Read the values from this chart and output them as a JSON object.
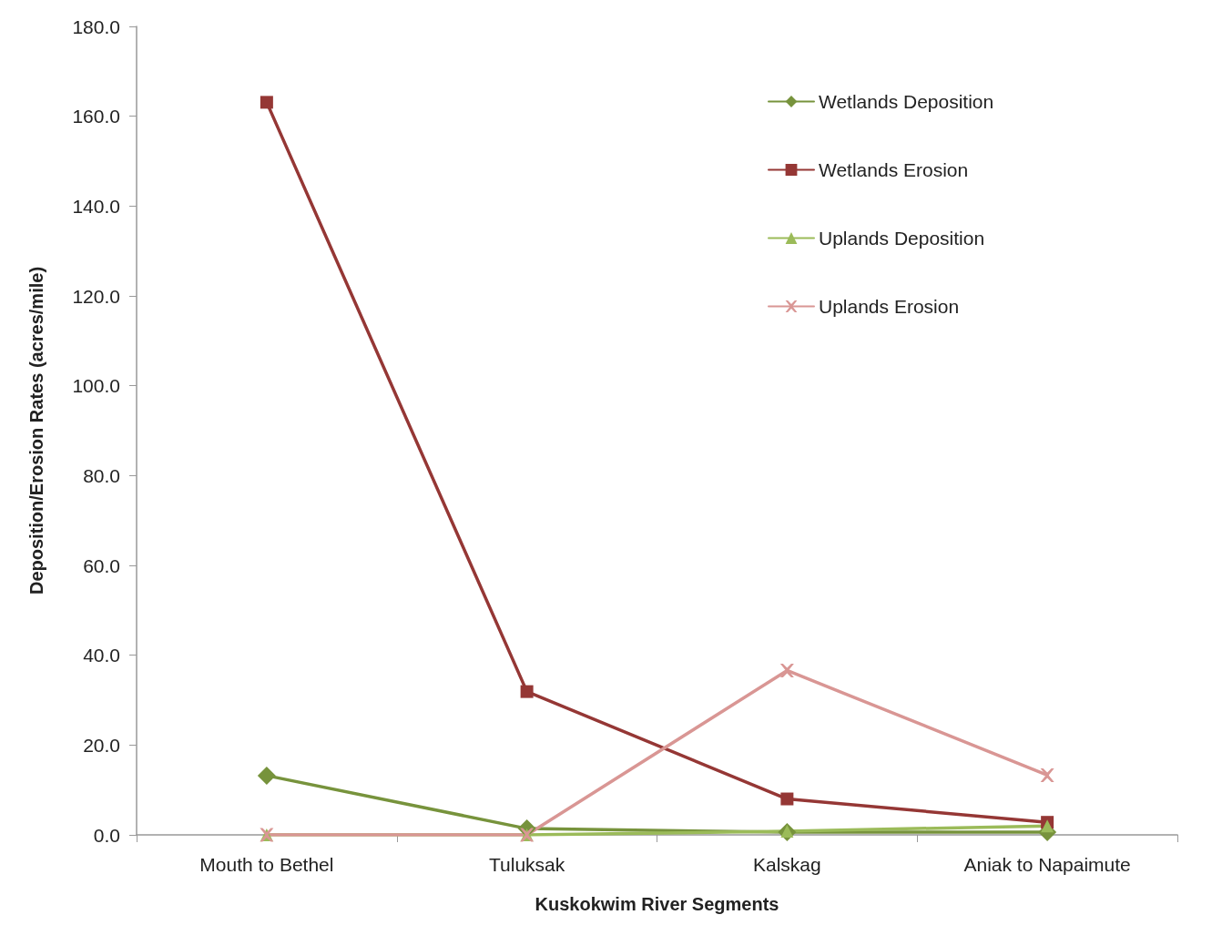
{
  "chart_data": {
    "type": "line",
    "xlabel": "Kuskokwim River Segments",
    "ylabel": "Deposition/Erosion Rates (acres/mile)",
    "categories": [
      "Mouth to Bethel",
      "Tuluksak",
      "Kalskag",
      "Aniak to Napaimute"
    ],
    "series": [
      {
        "name": "Wetlands Deposition",
        "color": "#77933c",
        "marker": "diamond",
        "values": [
          13.2,
          1.4,
          0.6,
          0.6
        ]
      },
      {
        "name": "Wetlands Erosion",
        "color": "#953735",
        "marker": "square",
        "values": [
          163.1,
          31.9,
          8.0,
          2.8
        ]
      },
      {
        "name": "Uplands Deposition",
        "color": "#9bbb59",
        "marker": "triangle",
        "values": [
          0,
          0,
          0.8,
          2.0
        ]
      },
      {
        "name": "Uplands Erosion",
        "color": "#d99694",
        "marker": "cross",
        "values": [
          0,
          0,
          36.6,
          13.3
        ]
      }
    ],
    "ylim": [
      0,
      180
    ],
    "yticks": [
      {
        "value": 0,
        "label": "0.0"
      },
      {
        "value": 20,
        "label": "20.0"
      },
      {
        "value": 40,
        "label": "40.0"
      },
      {
        "value": 60,
        "label": "60.0"
      },
      {
        "value": 80,
        "label": "80.0"
      },
      {
        "value": 100,
        "label": "100.0"
      },
      {
        "value": 120,
        "label": "120.0"
      },
      {
        "value": 140,
        "label": "140.0"
      },
      {
        "value": 160,
        "label": "160.0"
      },
      {
        "value": 180,
        "label": "180.0"
      }
    ],
    "grid": false,
    "legend": "top right",
    "line_style": "solid"
  }
}
